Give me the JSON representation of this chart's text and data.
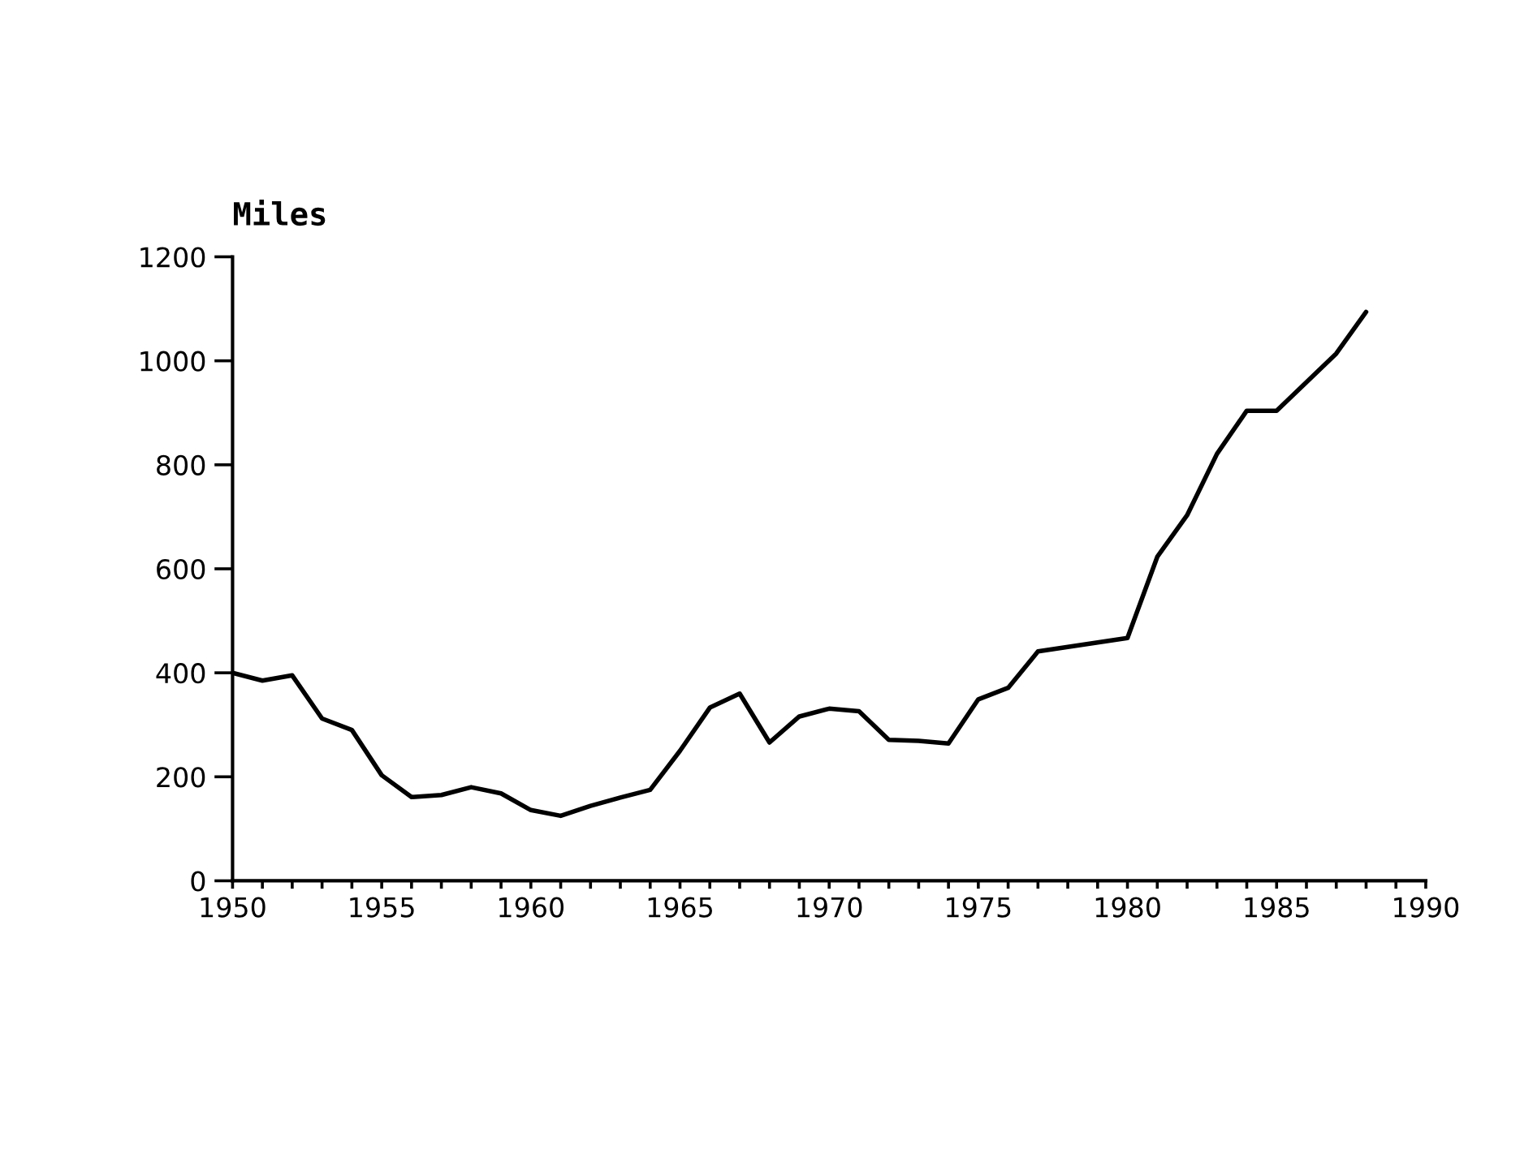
{
  "chart_data": {
    "type": "line",
    "ylabel": "Miles",
    "color": "#000000",
    "x": [
      1950,
      1951,
      1952,
      1953,
      1954,
      1955,
      1956,
      1957,
      1958,
      1959,
      1960,
      1961,
      1962,
      1963,
      1964,
      1965,
      1966,
      1967,
      1968,
      1969,
      1970,
      1971,
      1972,
      1973,
      1974,
      1975,
      1976,
      1977,
      1980,
      1981,
      1982,
      1983,
      1984,
      1985,
      1986,
      1987,
      1988
    ],
    "values": [
      400,
      385,
      395,
      312,
      290,
      203,
      161,
      165,
      180,
      168,
      136,
      125,
      144,
      160,
      175,
      250,
      333,
      360,
      266,
      316,
      331,
      326,
      271,
      269,
      264,
      349,
      371,
      441,
      467,
      623,
      703,
      821,
      904,
      904,
      959,
      1014,
      1094
    ],
    "xlim": [
      1950,
      1990
    ],
    "ylim": [
      0,
      1200
    ],
    "xticks": [
      1950,
      {
        "value": 1951,
        "label": null
      },
      {
        "value": 1952,
        "label": null
      },
      {
        "value": 1953,
        "label": null
      },
      {
        "value": 1954,
        "label": null
      },
      1955,
      {
        "value": 1956,
        "label": null
      },
      {
        "value": 1957,
        "label": null
      },
      {
        "value": 1958,
        "label": null
      },
      {
        "value": 1959,
        "label": null
      },
      1960,
      {
        "value": 1961,
        "label": null
      },
      {
        "value": 1962,
        "label": null
      },
      {
        "value": 1963,
        "label": null
      },
      {
        "value": 1964,
        "label": null
      },
      1965,
      {
        "value": 1966,
        "label": null
      },
      {
        "value": 1967,
        "label": null
      },
      {
        "value": 1968,
        "label": null
      },
      {
        "value": 1969,
        "label": null
      },
      1970,
      {
        "value": 1971,
        "label": null
      },
      {
        "value": 1972,
        "label": null
      },
      {
        "value": 1973,
        "label": null
      },
      {
        "value": 1974,
        "label": null
      },
      1975,
      {
        "value": 1976,
        "label": null
      },
      {
        "value": 1977,
        "label": null
      },
      {
        "value": 1978,
        "label": null
      },
      {
        "value": 1979,
        "label": null
      },
      1980,
      {
        "value": 1981,
        "label": null
      },
      {
        "value": 1982,
        "label": null
      },
      {
        "value": 1983,
        "label": null
      },
      {
        "value": 1984,
        "label": null
      },
      1985,
      {
        "value": 1986,
        "label": null
      },
      {
        "value": 1987,
        "label": null
      },
      {
        "value": 1988,
        "label": null
      },
      {
        "value": 1989,
        "label": null
      },
      1990
    ],
    "yticks": [
      0,
      200,
      400,
      600,
      800,
      1000,
      1200
    ],
    "grid": false,
    "marker": "none",
    "line_style": "solid"
  }
}
